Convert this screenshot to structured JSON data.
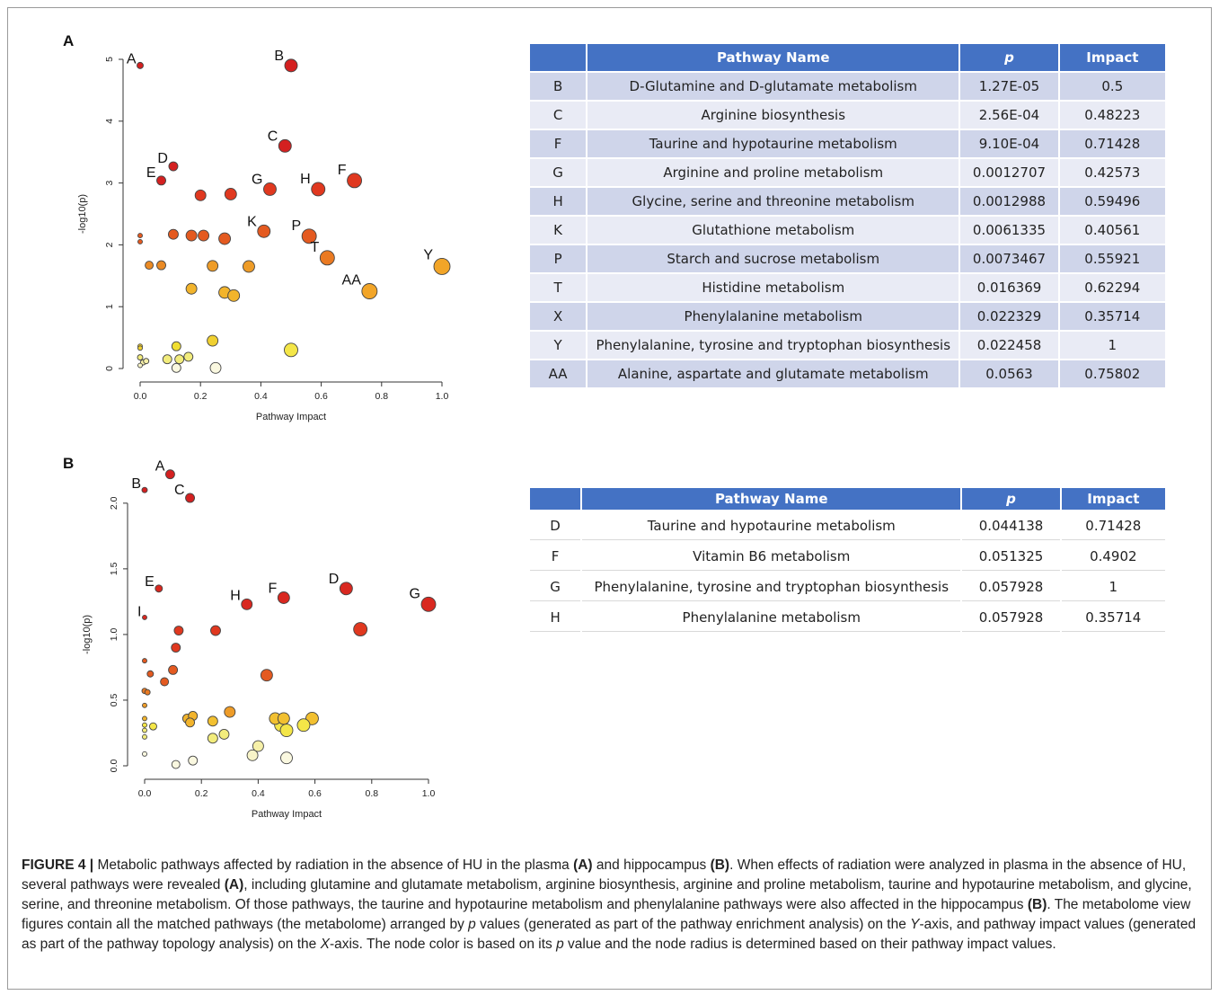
{
  "panelA": {
    "letter": "A",
    "plot": {
      "xlabel": "Pathway Impact",
      "ylabel": "-log10(p)",
      "xticks": [
        "0.0",
        "0.2",
        "0.4",
        "0.6",
        "0.8",
        "1.0"
      ],
      "yticks": [
        "0",
        "1",
        "2",
        "3",
        "4",
        "5"
      ]
    },
    "table": {
      "headers": [
        "",
        "Pathway Name",
        "p",
        "Impact"
      ],
      "rows": [
        [
          "B",
          "D-Glutamine and D-glutamate metabolism",
          "1.27E-05",
          "0.5"
        ],
        [
          "C",
          "Arginine biosynthesis",
          "2.56E-04",
          "0.48223"
        ],
        [
          "F",
          "Taurine and hypotaurine metabolism",
          "9.10E-04",
          "0.71428"
        ],
        [
          "G",
          "Arginine and proline metabolism",
          "0.0012707",
          "0.42573"
        ],
        [
          "H",
          "Glycine, serine and threonine metabolism",
          "0.0012988",
          "0.59496"
        ],
        [
          "K",
          "Glutathione metabolism",
          "0.0061335",
          "0.40561"
        ],
        [
          "P",
          "Starch and sucrose metabolism",
          "0.0073467",
          "0.55921"
        ],
        [
          "T",
          "Histidine metabolism",
          "0.016369",
          "0.62294"
        ],
        [
          "X",
          "Phenylalanine metabolism",
          "0.022329",
          "0.35714"
        ],
        [
          "Y",
          "Phenylalanine, tyrosine and tryptophan biosynthesis",
          "0.022458",
          "1"
        ],
        [
          "AA",
          "Alanine, aspartate and glutamate metabolism",
          "0.0563",
          "0.75802"
        ]
      ]
    }
  },
  "panelB": {
    "letter": "B",
    "plot": {
      "xlabel": "Pathway Impact",
      "ylabel": "-log10(p)",
      "xticks": [
        "0.0",
        "0.2",
        "0.4",
        "0.6",
        "0.8",
        "1.0"
      ],
      "yticks": [
        "0.0",
        "0.5",
        "1.0",
        "1.5",
        "2.0"
      ]
    },
    "table": {
      "headers": [
        "",
        "Pathway Name",
        "p",
        "Impact"
      ],
      "rows": [
        [
          "D",
          "Taurine and hypotaurine metabolism",
          "0.044138",
          "0.71428"
        ],
        [
          "F",
          "Vitamin B6 metabolism",
          "0.051325",
          "0.4902"
        ],
        [
          "G",
          "Phenylalanine, tyrosine and tryptophan biosynthesis",
          "0.057928",
          "1"
        ],
        [
          "H",
          "Phenylalanine metabolism",
          "0.057928",
          "0.35714"
        ]
      ]
    }
  },
  "chart_data": [
    {
      "type": "scatter",
      "xlabel": "Pathway Impact",
      "ylabel": "-log10(p)",
      "xlim": [
        0,
        1
      ],
      "ylim": [
        0,
        5
      ],
      "points": [
        {
          "x": 0.0,
          "y": 4.9,
          "r": 3.5,
          "c": "#d42020",
          "label": "A"
        },
        {
          "x": 0.5,
          "y": 4.9,
          "r": 7,
          "c": "#d42020",
          "label": "B"
        },
        {
          "x": 0.48,
          "y": 3.6,
          "r": 7,
          "c": "#d42020",
          "label": "C"
        },
        {
          "x": 0.11,
          "y": 3.27,
          "r": 5,
          "c": "#d42020",
          "label": "D"
        },
        {
          "x": 0.07,
          "y": 3.04,
          "r": 5,
          "c": "#d42020",
          "label": "E"
        },
        {
          "x": 0.71,
          "y": 3.04,
          "r": 8,
          "c": "#e0381f",
          "label": "F"
        },
        {
          "x": 0.43,
          "y": 2.9,
          "r": 7,
          "c": "#e0381f",
          "label": "G"
        },
        {
          "x": 0.59,
          "y": 2.9,
          "r": 7.5,
          "c": "#e0381f",
          "label": "H"
        },
        {
          "x": 0.2,
          "y": 2.8,
          "r": 6,
          "c": "#e0381f",
          "label": ""
        },
        {
          "x": 0.3,
          "y": 2.82,
          "r": 6.5,
          "c": "#e0381f",
          "label": ""
        },
        {
          "x": 0.41,
          "y": 2.22,
          "r": 7,
          "c": "#e45a20",
          "label": "K"
        },
        {
          "x": 0.0,
          "y": 2.15,
          "r": 2.5,
          "c": "#e45a20",
          "label": ""
        },
        {
          "x": 0.0,
          "y": 2.05,
          "r": 2.5,
          "c": "#e45a20",
          "label": ""
        },
        {
          "x": 0.11,
          "y": 2.17,
          "r": 5.5,
          "c": "#e45a20",
          "label": ""
        },
        {
          "x": 0.17,
          "y": 2.15,
          "r": 6,
          "c": "#e45a20",
          "label": ""
        },
        {
          "x": 0.21,
          "y": 2.15,
          "r": 6,
          "c": "#e45a20",
          "label": ""
        },
        {
          "x": 0.28,
          "y": 2.1,
          "r": 6.5,
          "c": "#e45a20",
          "label": ""
        },
        {
          "x": 0.56,
          "y": 2.14,
          "r": 8,
          "c": "#e45a20",
          "label": "P"
        },
        {
          "x": 0.62,
          "y": 1.79,
          "r": 8,
          "c": "#ea7a22",
          "label": "T"
        },
        {
          "x": 1.0,
          "y": 1.65,
          "r": 9,
          "c": "#f2a528",
          "label": "Y"
        },
        {
          "x": 0.03,
          "y": 1.67,
          "r": 4.5,
          "c": "#ea8a24",
          "label": ""
        },
        {
          "x": 0.07,
          "y": 1.67,
          "r": 5,
          "c": "#ea8a24",
          "label": ""
        },
        {
          "x": 0.24,
          "y": 1.66,
          "r": 6,
          "c": "#ee9c28",
          "label": ""
        },
        {
          "x": 0.36,
          "y": 1.65,
          "r": 6.5,
          "c": "#ee9c28",
          "label": ""
        },
        {
          "x": 0.76,
          "y": 1.25,
          "r": 8.5,
          "c": "#f2a528",
          "label": "AA"
        },
        {
          "x": 0.17,
          "y": 1.29,
          "r": 6,
          "c": "#f2b42c",
          "label": ""
        },
        {
          "x": 0.28,
          "y": 1.23,
          "r": 6.5,
          "c": "#f2b42c",
          "label": ""
        },
        {
          "x": 0.31,
          "y": 1.18,
          "r": 6.5,
          "c": "#f2b42c",
          "label": ""
        },
        {
          "x": 0.0,
          "y": 0.36,
          "r": 2.5,
          "c": "#f0d030",
          "label": ""
        },
        {
          "x": 0.0,
          "y": 0.33,
          "r": 2.5,
          "c": "#f0d030",
          "label": ""
        },
        {
          "x": 0.12,
          "y": 0.36,
          "r": 5,
          "c": "#f0de30",
          "label": ""
        },
        {
          "x": 0.24,
          "y": 0.45,
          "r": 6,
          "c": "#f0d030",
          "label": ""
        },
        {
          "x": 0.5,
          "y": 0.3,
          "r": 7.5,
          "c": "#f4e648",
          "label": ""
        },
        {
          "x": 0.0,
          "y": 0.18,
          "r": 3,
          "c": "#f2ec7c",
          "label": ""
        },
        {
          "x": 0.01,
          "y": 0.1,
          "r": 3,
          "c": "#f6f0a8",
          "label": ""
        },
        {
          "x": 0.0,
          "y": 0.05,
          "r": 2.5,
          "c": "#f8f4c8",
          "label": ""
        },
        {
          "x": 0.02,
          "y": 0.12,
          "r": 3,
          "c": "#f6f0a8",
          "label": ""
        },
        {
          "x": 0.09,
          "y": 0.15,
          "r": 5,
          "c": "#f2ec7c",
          "label": ""
        },
        {
          "x": 0.13,
          "y": 0.15,
          "r": 5,
          "c": "#f2ec7c",
          "label": ""
        },
        {
          "x": 0.16,
          "y": 0.19,
          "r": 5,
          "c": "#f2ec7c",
          "label": ""
        },
        {
          "x": 0.12,
          "y": 0.01,
          "r": 5,
          "c": "#faf8e0",
          "label": ""
        },
        {
          "x": 0.25,
          "y": 0.01,
          "r": 6,
          "c": "#faf8e0",
          "label": ""
        }
      ]
    },
    {
      "type": "scatter",
      "xlabel": "Pathway Impact",
      "ylabel": "-log10(p)",
      "xlim": [
        0,
        1
      ],
      "ylim": [
        0,
        2.3
      ],
      "points": [
        {
          "x": 0.09,
          "y": 2.22,
          "r": 5,
          "c": "#d42020",
          "label": "A"
        },
        {
          "x": 0.0,
          "y": 2.1,
          "r": 3,
          "c": "#d42020",
          "label": "B"
        },
        {
          "x": 0.16,
          "y": 2.04,
          "r": 5,
          "c": "#d42020",
          "label": "C"
        },
        {
          "x": 0.71,
          "y": 1.35,
          "r": 7,
          "c": "#d92820",
          "label": "D"
        },
        {
          "x": 0.05,
          "y": 1.35,
          "r": 4,
          "c": "#d92820",
          "label": "E"
        },
        {
          "x": 0.49,
          "y": 1.28,
          "r": 6.5,
          "c": "#d92820",
          "label": "F"
        },
        {
          "x": 1.0,
          "y": 1.23,
          "r": 8,
          "c": "#d92820",
          "label": "G"
        },
        {
          "x": 0.36,
          "y": 1.23,
          "r": 6,
          "c": "#d92820",
          "label": "H"
        },
        {
          "x": 0.0,
          "y": 1.13,
          "r": 2.5,
          "c": "#d92820",
          "label": "I"
        },
        {
          "x": 0.76,
          "y": 1.04,
          "r": 7.5,
          "c": "#e0381f",
          "label": ""
        },
        {
          "x": 0.12,
          "y": 1.03,
          "r": 5,
          "c": "#e0381f",
          "label": ""
        },
        {
          "x": 0.25,
          "y": 1.03,
          "r": 5.5,
          "c": "#e0381f",
          "label": ""
        },
        {
          "x": 0.11,
          "y": 0.9,
          "r": 5,
          "c": "#e0381f",
          "label": ""
        },
        {
          "x": 0.0,
          "y": 0.8,
          "r": 2.5,
          "c": "#e45a20",
          "label": ""
        },
        {
          "x": 0.02,
          "y": 0.7,
          "r": 3.5,
          "c": "#e45a20",
          "label": ""
        },
        {
          "x": 0.1,
          "y": 0.73,
          "r": 5,
          "c": "#e45a20",
          "label": ""
        },
        {
          "x": 0.07,
          "y": 0.64,
          "r": 4.5,
          "c": "#e45a20",
          "label": ""
        },
        {
          "x": 0.43,
          "y": 0.69,
          "r": 6.5,
          "c": "#e45a20",
          "label": ""
        },
        {
          "x": 0.0,
          "y": 0.57,
          "r": 3,
          "c": "#ea7a22",
          "label": ""
        },
        {
          "x": 0.01,
          "y": 0.56,
          "r": 3,
          "c": "#ea7a22",
          "label": ""
        },
        {
          "x": 0.0,
          "y": 0.46,
          "r": 2.5,
          "c": "#ee9c28",
          "label": ""
        },
        {
          "x": 0.3,
          "y": 0.41,
          "r": 6,
          "c": "#ee9c28",
          "label": ""
        },
        {
          "x": 0.0,
          "y": 0.36,
          "r": 2.5,
          "c": "#f2b42c",
          "label": ""
        },
        {
          "x": 0.15,
          "y": 0.36,
          "r": 5,
          "c": "#f2b42c",
          "label": ""
        },
        {
          "x": 0.17,
          "y": 0.38,
          "r": 5,
          "c": "#f2b42c",
          "label": ""
        },
        {
          "x": 0.16,
          "y": 0.33,
          "r": 5,
          "c": "#f2b42c",
          "label": ""
        },
        {
          "x": 0.24,
          "y": 0.34,
          "r": 5.5,
          "c": "#f2c030",
          "label": ""
        },
        {
          "x": 0.46,
          "y": 0.36,
          "r": 6.5,
          "c": "#f2c030",
          "label": ""
        },
        {
          "x": 0.49,
          "y": 0.36,
          "r": 6.5,
          "c": "#f2c030",
          "label": ""
        },
        {
          "x": 0.59,
          "y": 0.36,
          "r": 7,
          "c": "#f2c030",
          "label": ""
        },
        {
          "x": 0.0,
          "y": 0.31,
          "r": 2.5,
          "c": "#f4e648",
          "label": ""
        },
        {
          "x": 0.03,
          "y": 0.3,
          "r": 4,
          "c": "#f4e648",
          "label": ""
        },
        {
          "x": 0.48,
          "y": 0.31,
          "r": 7,
          "c": "#f4e648",
          "label": ""
        },
        {
          "x": 0.5,
          "y": 0.27,
          "r": 7,
          "c": "#f4e648",
          "label": ""
        },
        {
          "x": 0.56,
          "y": 0.31,
          "r": 7,
          "c": "#f4e648",
          "label": ""
        },
        {
          "x": 0.0,
          "y": 0.27,
          "r": 2.5,
          "c": "#f2ec7c",
          "label": ""
        },
        {
          "x": 0.0,
          "y": 0.22,
          "r": 2.5,
          "c": "#f2ec7c",
          "label": ""
        },
        {
          "x": 0.24,
          "y": 0.21,
          "r": 5.5,
          "c": "#f2ec7c",
          "label": ""
        },
        {
          "x": 0.28,
          "y": 0.24,
          "r": 5.5,
          "c": "#f2ec7c",
          "label": ""
        },
        {
          "x": 0.4,
          "y": 0.15,
          "r": 6,
          "c": "#f6f0a8",
          "label": ""
        },
        {
          "x": 0.38,
          "y": 0.08,
          "r": 6,
          "c": "#f8f4c8",
          "label": ""
        },
        {
          "x": 0.5,
          "y": 0.06,
          "r": 6.5,
          "c": "#faf8e0",
          "label": ""
        },
        {
          "x": 0.0,
          "y": 0.09,
          "r": 2.5,
          "c": "#faf8e0",
          "label": ""
        },
        {
          "x": 0.11,
          "y": 0.01,
          "r": 4.5,
          "c": "#faf8e0",
          "label": ""
        },
        {
          "x": 0.17,
          "y": 0.04,
          "r": 5,
          "c": "#faf8e0",
          "label": ""
        }
      ]
    }
  ],
  "caption": {
    "figure_label": "FIGURE 4 |",
    "s1": " Metabolic pathways affected by radiation in the absence of HU in the plasma ",
    "a1": "(A)",
    "s2": " and hippocampus ",
    "b1": "(B)",
    "s3": ". When effects of radiation were analyzed in plasma in the absence of HU, several pathways were revealed ",
    "a2": "(A)",
    "s4": ", including glutamine and glutamate metabolism, arginine biosynthesis, arginine and proline metabolism, taurine and hypotaurine metabolism, and glycine, serine, and threonine metabolism. Of those pathways, the taurine and hypotaurine metabolism and phenylalanine pathways were also affected in the hippocampus ",
    "b2": "(B)",
    "s5": ". The metabolome view figures contain all the matched pathways (the metabolome) arranged by ",
    "p1": "p",
    "s6": " values (generated as part of the pathway enrichment analysis) on the ",
    "y1": "Y",
    "s7": "-axis, and pathway impact values (generated as part of the pathway topology analysis) on the ",
    "x1": "X",
    "s8": "-axis. The node color is based on its ",
    "p2": "p",
    "s9": " value and the node radius is determined based on their pathway impact values."
  }
}
